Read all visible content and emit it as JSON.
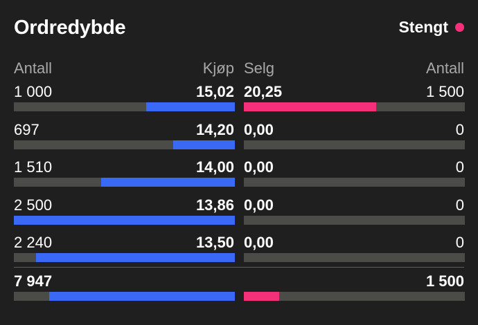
{
  "header": {
    "title": "Ordredybde",
    "status_label": "Stengt"
  },
  "colors": {
    "buy": "#3a6af5",
    "sell": "#f5307a",
    "status_dot": "#f5307a",
    "track": "#4b4b48"
  },
  "columns": {
    "buy_qty": "Antall",
    "buy_price": "Kjøp",
    "sell_price": "Selg",
    "sell_qty": "Antall"
  },
  "rows": [
    {
      "buy_qty": "1 000",
      "buy_price": "15,02",
      "sell_price": "20,25",
      "sell_qty": "1 500",
      "buy_fill": 0.4,
      "sell_fill": 0.6
    },
    {
      "buy_qty": "697",
      "buy_price": "14,20",
      "sell_price": "0,00",
      "sell_qty": "0",
      "buy_fill": 0.28,
      "sell_fill": 0
    },
    {
      "buy_qty": "1 510",
      "buy_price": "14,00",
      "sell_price": "0,00",
      "sell_qty": "0",
      "buy_fill": 0.605,
      "sell_fill": 0
    },
    {
      "buy_qty": "2 500",
      "buy_price": "13,86",
      "sell_price": "0,00",
      "sell_qty": "0",
      "buy_fill": 1.0,
      "sell_fill": 0
    },
    {
      "buy_qty": "2 240",
      "buy_price": "13,50",
      "sell_price": "0,00",
      "sell_qty": "0",
      "buy_fill": 0.9,
      "sell_fill": 0
    }
  ],
  "totals": {
    "buy_qty": "7 947",
    "sell_qty": "1 500",
    "buy_fill": 0.84,
    "sell_fill": 0.16
  }
}
